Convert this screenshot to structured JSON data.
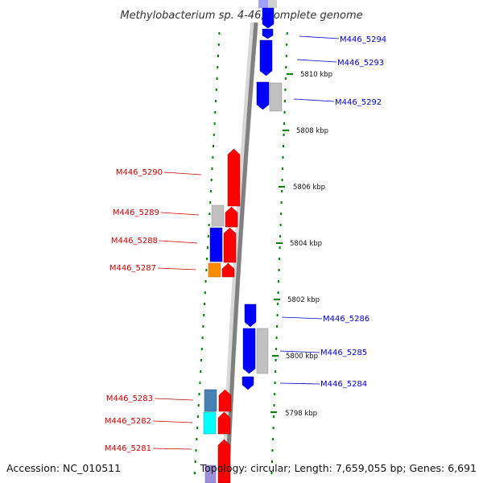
{
  "header": {
    "title": "Methylobacterium sp. 4-46, complete genome"
  },
  "footer": {
    "accession": "Accession: NC_010511",
    "topology": "Topology: circular; Length: 7,659,055 bp; Genes: 6,691"
  },
  "colors": {
    "forward_strand": "#ff0000",
    "reverse_strand": "#0000ff",
    "no_function": "#c0c0c0",
    "orange_class": "#ff8c00",
    "steelblue_class": "#4682b4",
    "cyan_class": "#00ffff",
    "lavender_class": "#9b8fd9",
    "backbone": "#808080",
    "ruler_dots": "#008000"
  },
  "ruler": {
    "ticks": [
      "5810 kbp",
      "5808 kbp",
      "5806 kbp",
      "5804 kbp",
      "5802 kbp",
      "5800 kbp",
      "5798 kbp"
    ]
  },
  "genes": {
    "right": [
      "M446_5294",
      "M446_5293",
      "M446_5292",
      "M446_5286",
      "M446_5285",
      "M446_5284"
    ],
    "left": [
      "M446_5290",
      "M446_5289",
      "M446_5288",
      "M446_5287",
      "M446_5283",
      "M446_5282",
      "M446_5281"
    ]
  }
}
